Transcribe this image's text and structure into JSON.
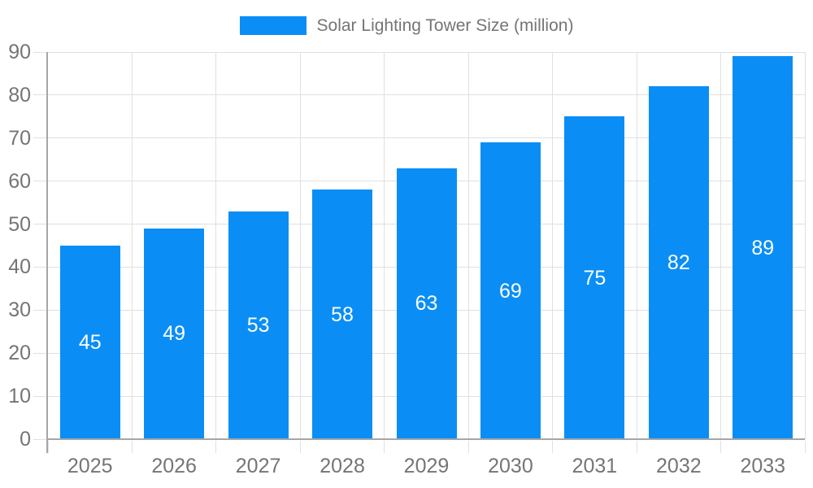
{
  "chart_data": {
    "type": "bar",
    "title": "Solar Lighting Tower Size (million)",
    "categories": [
      "2025",
      "2026",
      "2027",
      "2028",
      "2029",
      "2030",
      "2031",
      "2032",
      "2033"
    ],
    "values": [
      45,
      49,
      53,
      58,
      63,
      69,
      75,
      82,
      89
    ],
    "series": [
      {
        "name": "Solar Lighting Tower Size (million)",
        "values": [
          45,
          49,
          53,
          58,
          63,
          69,
          75,
          82,
          89
        ]
      }
    ],
    "xlabel": "",
    "ylabel": "",
    "ylim": [
      0,
      90
    ],
    "ytick_step": 10,
    "yticks": [
      0,
      10,
      20,
      30,
      40,
      50,
      60,
      70,
      80,
      90
    ],
    "grid": true,
    "legend_position": "top-center",
    "value_label_position": "inside-center",
    "colors": {
      "bar": "#0a8ef6",
      "grid": "#e0e0e0",
      "axis": "#a6a6a6",
      "tick_label": "#757575",
      "value_label": "#ffffff",
      "background": "#ffffff"
    }
  }
}
